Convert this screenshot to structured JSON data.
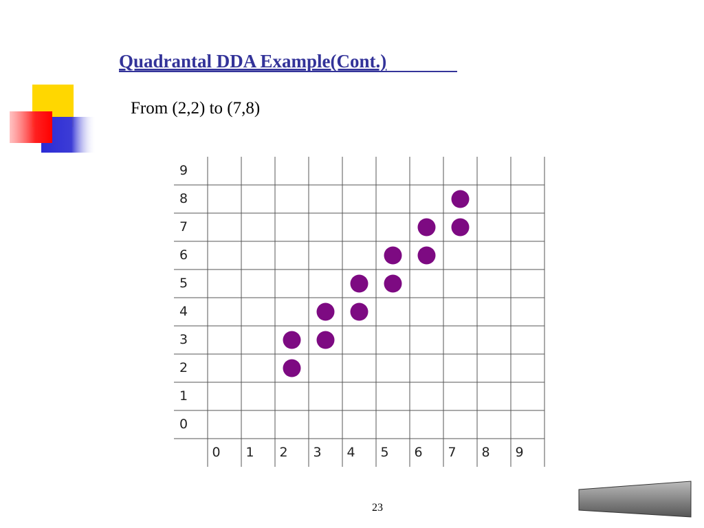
{
  "slide": {
    "title": "Quadrantal DDA Example(Cont.)",
    "subtitle": "From (2,2) to (7,8)",
    "page_number": "23"
  },
  "grid": {
    "row_labels": [
      9,
      8,
      7,
      6,
      5,
      4,
      3,
      2,
      1,
      0
    ],
    "col_labels": [
      0,
      1,
      2,
      3,
      4,
      5,
      6,
      7,
      8,
      9
    ],
    "point_color": "#7d0a82",
    "points": [
      {
        "x": 2,
        "y": 2
      },
      {
        "x": 2,
        "y": 3
      },
      {
        "x": 3,
        "y": 3
      },
      {
        "x": 3,
        "y": 4
      },
      {
        "x": 4,
        "y": 4
      },
      {
        "x": 4,
        "y": 5
      },
      {
        "x": 5,
        "y": 5
      },
      {
        "x": 5,
        "y": 6
      },
      {
        "x": 6,
        "y": 6
      },
      {
        "x": 6,
        "y": 7
      },
      {
        "x": 7,
        "y": 7
      },
      {
        "x": 7,
        "y": 8
      }
    ]
  }
}
